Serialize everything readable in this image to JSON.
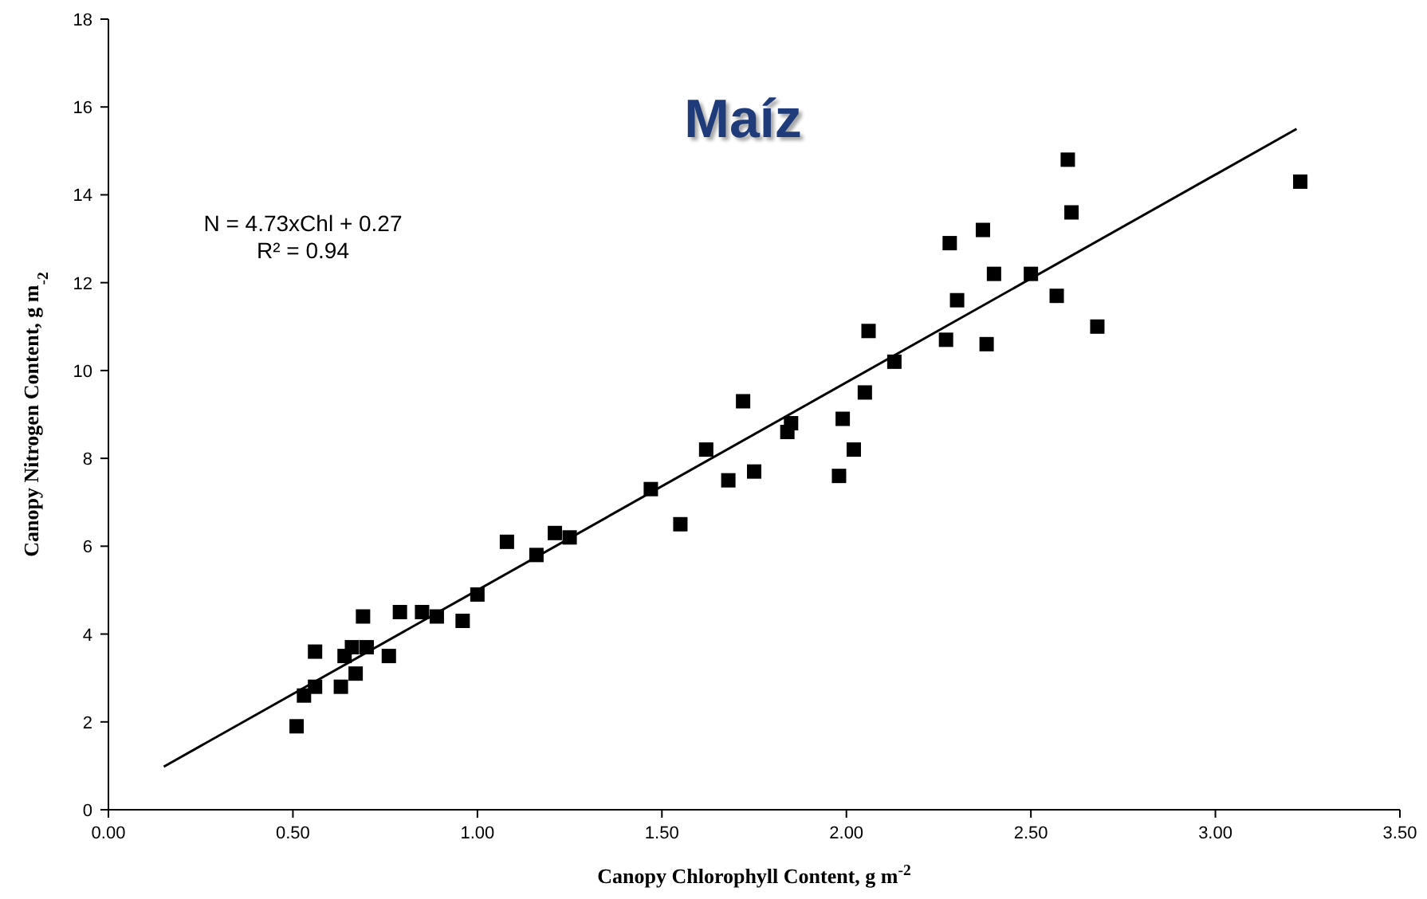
{
  "chart_data": {
    "type": "scatter",
    "title": "Maíz",
    "xlabel": "Canopy Chlorophyll Content, g m$^{-2}$",
    "ylabel": "Canopy Nitrogen Content, g m$_{-2}$",
    "annotations": [
      "N = 4.73xChl + 0.27",
      "R² = 0.94"
    ],
    "grid": false,
    "xlim": [
      0,
      3.5
    ],
    "ylim": [
      0,
      18
    ],
    "xticks": [
      {
        "value": 0,
        "label": "0.00"
      },
      {
        "value": 0.5,
        "label": "0.50"
      },
      {
        "value": 1,
        "label": "1.00"
      },
      {
        "value": 1.5,
        "label": "1.50"
      },
      {
        "value": 2,
        "label": "2.00"
      },
      {
        "value": 2.5,
        "label": "2.50"
      },
      {
        "value": 3,
        "label": "3.00"
      },
      {
        "value": 3.5,
        "label": "3.50"
      }
    ],
    "yticks": [
      0,
      2,
      4,
      6,
      8,
      10,
      12,
      14,
      16,
      18
    ],
    "series": [
      {
        "marker": "square",
        "color": "#000000",
        "x": [
          0.51,
          0.53,
          0.56,
          0.56,
          0.63,
          0.64,
          0.66,
          0.67,
          0.69,
          0.7,
          0.76,
          0.79,
          0.85,
          0.89,
          0.96,
          1.0,
          1.08,
          1.16,
          1.21,
          1.25,
          1.47,
          1.55,
          1.62,
          1.68,
          1.72,
          1.75,
          1.84,
          1.85,
          1.98,
          1.99,
          2.02,
          2.05,
          2.06,
          2.13,
          2.27,
          2.28,
          2.3,
          2.37,
          2.38,
          2.4,
          2.5,
          2.57,
          2.6,
          2.61,
          2.68,
          3.23
        ],
        "values": [
          1.9,
          2.6,
          2.8,
          3.6,
          2.8,
          3.5,
          3.7,
          3.1,
          4.4,
          3.7,
          3.5,
          4.5,
          4.5,
          4.4,
          4.3,
          4.9,
          6.1,
          5.8,
          6.3,
          6.2,
          7.3,
          6.5,
          8.2,
          7.5,
          9.3,
          7.7,
          8.6,
          8.8,
          7.6,
          8.9,
          8.2,
          9.5,
          10.9,
          10.2,
          10.7,
          12.9,
          11.6,
          13.2,
          10.6,
          12.2,
          12.2,
          11.7,
          14.8,
          13.6,
          11.0,
          14.3
        ]
      },
      {
        "type": "line",
        "color": "#000000",
        "x": [
          0.15,
          3.22
        ],
        "values": [
          0.98,
          15.5
        ]
      }
    ]
  }
}
